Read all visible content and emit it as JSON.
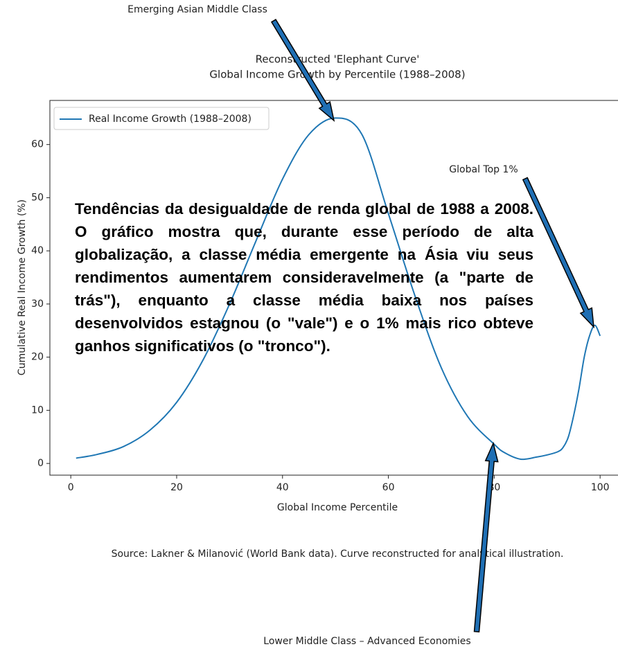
{
  "chart_data": {
    "type": "line",
    "title": "Reconstructed 'Elephant Curve'",
    "subtitle": "Global Income Growth by Percentile (1988–2008)",
    "x_label": "Global Income Percentile",
    "y_label": "Cumulative Real Income Growth (%)",
    "source": "Source: Lakner & Milanović (World Bank data). Curve reconstructed for analytical illustration.",
    "x": [
      1,
      5,
      10,
      15,
      20,
      25,
      30,
      35,
      40,
      45,
      50,
      55,
      60,
      65,
      70,
      75,
      80,
      82,
      85,
      88,
      90,
      92,
      93,
      94,
      95,
      96,
      97,
      98,
      99,
      100
    ],
    "series": [
      {
        "name": "Real Income Growth (1988–2008)",
        "color": "#1f77b4",
        "values": [
          1.0,
          1.7,
          3.2,
          6.3,
          11.5,
          19.5,
          30,
          41.9,
          53.5,
          61.9,
          65,
          61.9,
          47,
          31.6,
          18,
          8.8,
          3.6,
          2,
          0.8,
          1.2,
          1.6,
          2.2,
          3,
          5,
          9,
          14,
          20,
          24,
          26,
          24
        ]
      }
    ],
    "xlim": [
      -3.95,
      104.95
    ],
    "ylim": [
      -2.2,
      68.3
    ],
    "xticks": [
      0,
      20,
      40,
      60,
      80,
      100
    ],
    "yticks": [
      0,
      10,
      20,
      30,
      40,
      50,
      60
    ],
    "legend": "upper left",
    "annotations": [
      "Emerging Asian Middle Class",
      "Global Top 1%",
      "Lower Middle Class – Advanced Economies"
    ],
    "overlay_text": "Tendências da desigualdade de renda global de 1988 a 2008. O gráfico mostra que, durante esse período de alta globalização, a classe média emergente na Ásia viu seus rendimentos aumentarem consideravelmente (a \"parte de trás\"), enquanto a classe média baixa nos países desenvolvidos estagnou (o \"vale\") e o 1% mais rico obteve ganhos significativos (o \"tronco\")."
  }
}
